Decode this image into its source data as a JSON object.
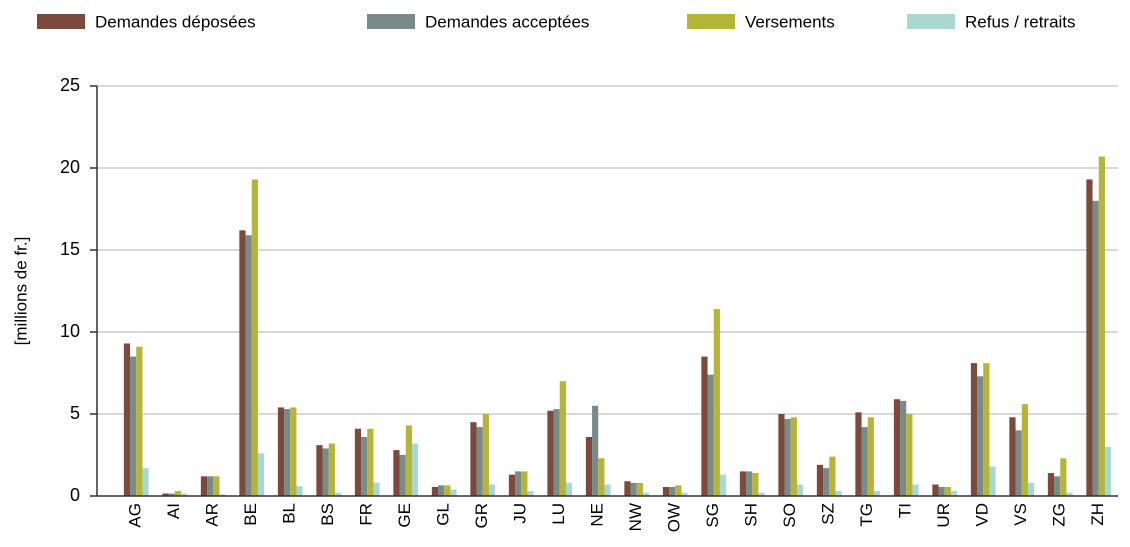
{
  "chart_data": {
    "type": "bar",
    "y_label": "[millions de fr.]",
    "categories": [
      "AG",
      "AI",
      "AR",
      "BE",
      "BL",
      "BS",
      "FR",
      "GE",
      "GL",
      "GR",
      "JU",
      "LU",
      "NE",
      "NW",
      "OW",
      "SG",
      "SH",
      "SO",
      "SZ",
      "TG",
      "TI",
      "UR",
      "VD",
      "VS",
      "ZG",
      "ZH"
    ],
    "series": [
      {
        "name": "Demandes déposées",
        "color": "#7b4a3c",
        "values": [
          9.3,
          0.15,
          1.2,
          16.2,
          5.4,
          3.1,
          4.1,
          2.8,
          0.55,
          4.5,
          1.3,
          5.2,
          3.6,
          0.9,
          0.55,
          8.5,
          1.5,
          5.0,
          1.9,
          5.1,
          5.9,
          0.7,
          8.1,
          4.8,
          1.4,
          19.3
        ]
      },
      {
        "name": "Demandes acceptées",
        "color": "#7a8a88",
        "values": [
          8.5,
          0.15,
          1.2,
          15.9,
          5.3,
          2.9,
          3.6,
          2.5,
          0.65,
          4.2,
          1.5,
          5.3,
          5.5,
          0.8,
          0.55,
          7.4,
          1.5,
          4.7,
          1.7,
          4.2,
          5.8,
          0.55,
          7.3,
          4.0,
          1.2,
          18.0
        ]
      },
      {
        "name": "Versements",
        "color": "#b5b53a",
        "values": [
          9.1,
          0.3,
          1.2,
          19.3,
          5.4,
          3.2,
          4.1,
          4.3,
          0.65,
          5.0,
          1.5,
          7.0,
          2.3,
          0.8,
          0.65,
          11.4,
          1.4,
          4.8,
          2.4,
          4.8,
          5.0,
          0.55,
          8.1,
          5.6,
          2.3,
          20.7
        ]
      },
      {
        "name": "Refus / retraits",
        "color": "#a8d8d0",
        "values": [
          1.7,
          0.15,
          0.1,
          2.6,
          0.6,
          0.2,
          0.8,
          3.2,
          0.4,
          0.7,
          0.3,
          0.8,
          0.7,
          0.2,
          0.2,
          1.3,
          0.2,
          0.7,
          0.3,
          0.3,
          0.7,
          0.3,
          1.8,
          0.8,
          0.2,
          3.0
        ]
      }
    ],
    "ylim": [
      0,
      25
    ],
    "yticks": [
      0,
      5,
      10,
      15,
      20,
      25
    ],
    "grid": true
  }
}
